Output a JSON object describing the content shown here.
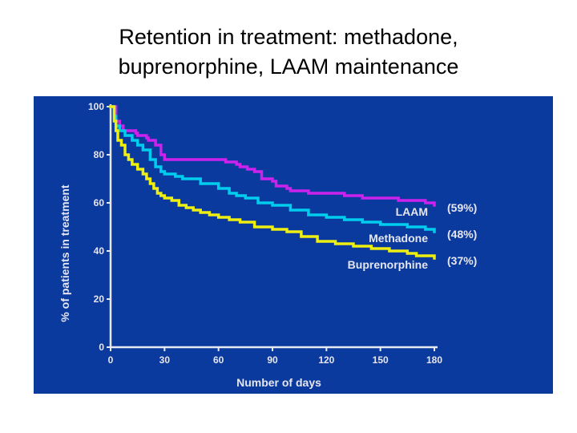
{
  "page": {
    "title_line1": "Retention in treatment: methadone,",
    "title_line2": "buprenorphine, LAAM maintenance"
  },
  "colors": {
    "panel_background": "#0b3a9e",
    "axis": "#e8e8f0",
    "text": "#e6e6f0"
  },
  "chart_data": {
    "type": "line",
    "title": "",
    "xlabel": "Number of days",
    "ylabel": "% of patients in treatment",
    "xlim": [
      0,
      180
    ],
    "ylim": [
      0,
      100
    ],
    "x_ticks": [
      "0",
      "30",
      "60",
      "90",
      "120",
      "150",
      "180"
    ],
    "y_ticks": [
      "0",
      "20",
      "40",
      "60",
      "80",
      "100"
    ],
    "grid": false,
    "legend": "inline-right",
    "series": [
      {
        "name": "LAAM",
        "end_label": "(59%)",
        "color": "#cc22ee",
        "x": [
          0,
          3,
          5,
          7,
          14,
          15,
          20,
          21,
          25,
          28,
          30,
          63,
          64,
          70,
          72,
          76,
          80,
          84,
          90,
          92,
          98,
          100,
          105,
          110,
          120,
          130,
          140,
          150,
          155,
          160,
          165,
          170,
          175,
          178,
          180
        ],
        "y": [
          100,
          94,
          92,
          90,
          89,
          88,
          87,
          86,
          84,
          80,
          78,
          78,
          77,
          76,
          75,
          74,
          73,
          70,
          69,
          67,
          66,
          65,
          65,
          64,
          64,
          63,
          62,
          62,
          62,
          61,
          61,
          61,
          60,
          60,
          59
        ]
      },
      {
        "name": "Methadone",
        "end_label": "(48%)",
        "color": "#00ccee",
        "x": [
          0,
          2,
          3,
          5,
          8,
          12,
          15,
          18,
          22,
          25,
          28,
          30,
          36,
          40,
          50,
          60,
          66,
          70,
          75,
          82,
          90,
          100,
          110,
          120,
          130,
          140,
          150,
          160,
          165,
          170,
          175,
          180
        ],
        "y": [
          100,
          96,
          92,
          90,
          88,
          86,
          84,
          82,
          78,
          75,
          73,
          72,
          71,
          70,
          68,
          66,
          64,
          63,
          62,
          60,
          59,
          57,
          55,
          54,
          53,
          52,
          51,
          51,
          50,
          50,
          49,
          48
        ]
      },
      {
        "name": "Buprenorphine",
        "end_label": "(37%)",
        "color": "#eeee11",
        "x": [
          0,
          2,
          3,
          4,
          6,
          8,
          10,
          12,
          15,
          18,
          20,
          22,
          24,
          26,
          28,
          30,
          34,
          38,
          42,
          46,
          50,
          55,
          60,
          66,
          72,
          80,
          90,
          98,
          106,
          115,
          125,
          135,
          145,
          155,
          165,
          170,
          175,
          180
        ],
        "y": [
          100,
          94,
          90,
          86,
          84,
          80,
          78,
          76,
          74,
          72,
          70,
          68,
          66,
          64,
          63,
          62,
          61,
          59,
          58,
          57,
          56,
          55,
          54,
          53,
          52,
          50,
          49,
          48,
          46,
          44,
          43,
          42,
          41,
          40,
          39,
          38,
          38,
          37
        ]
      }
    ]
  }
}
